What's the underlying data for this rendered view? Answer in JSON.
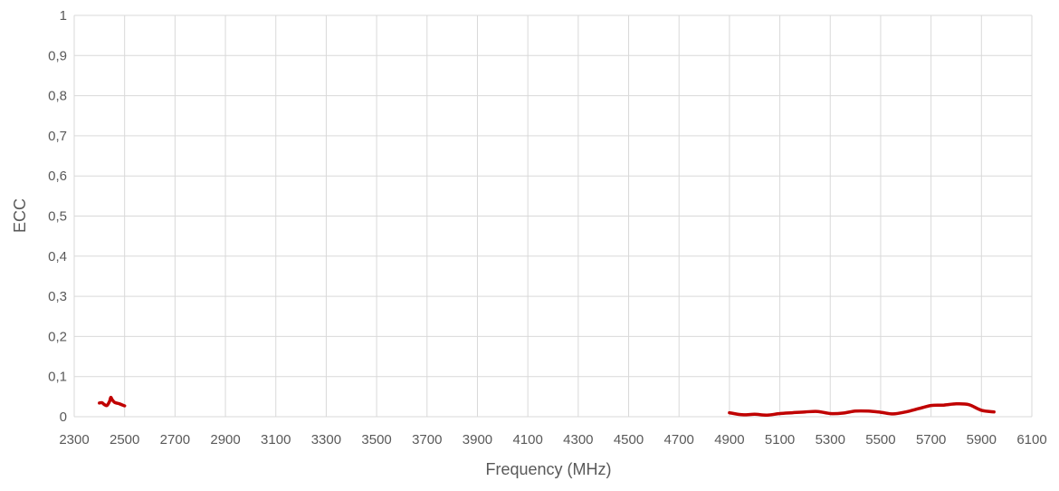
{
  "chart_data": {
    "type": "line",
    "xlabel": "Frequency (MHz)",
    "ylabel": "ECC",
    "xlim": [
      2300,
      6100
    ],
    "ylim": [
      0,
      1
    ],
    "grid": true,
    "x_ticks": [
      "2300",
      "2500",
      "2700",
      "2900",
      "3100",
      "3300",
      "3500",
      "3700",
      "3900",
      "4100",
      "4300",
      "4500",
      "4700",
      "4900",
      "5100",
      "5300",
      "5500",
      "5700",
      "5900",
      "6100"
    ],
    "y_ticks": [
      "0",
      "0,1",
      "0,2",
      "0,3",
      "0,4",
      "0,5",
      "0,6",
      "0,7",
      "0,8",
      "0,9",
      "1"
    ],
    "series": [
      {
        "color": "#c00000",
        "segments": [
          [
            [
              2400,
              0.034
            ],
            [
              2410,
              0.035
            ],
            [
              2420,
              0.03
            ],
            [
              2430,
              0.028
            ],
            [
              2440,
              0.038
            ],
            [
              2445,
              0.048
            ],
            [
              2450,
              0.043
            ],
            [
              2460,
              0.036
            ],
            [
              2480,
              0.032
            ],
            [
              2500,
              0.027
            ]
          ],
          [
            [
              4900,
              0.01
            ],
            [
              4950,
              0.005
            ],
            [
              5000,
              0.006
            ],
            [
              5050,
              0.004
            ],
            [
              5100,
              0.008
            ],
            [
              5150,
              0.01
            ],
            [
              5200,
              0.012
            ],
            [
              5250,
              0.013
            ],
            [
              5300,
              0.008
            ],
            [
              5350,
              0.009
            ],
            [
              5400,
              0.014
            ],
            [
              5450,
              0.014
            ],
            [
              5500,
              0.011
            ],
            [
              5550,
              0.007
            ],
            [
              5600,
              0.012
            ],
            [
              5650,
              0.02
            ],
            [
              5700,
              0.028
            ],
            [
              5750,
              0.029
            ],
            [
              5800,
              0.032
            ],
            [
              5850,
              0.03
            ],
            [
              5900,
              0.016
            ],
            [
              5950,
              0.012
            ]
          ]
        ]
      }
    ]
  }
}
